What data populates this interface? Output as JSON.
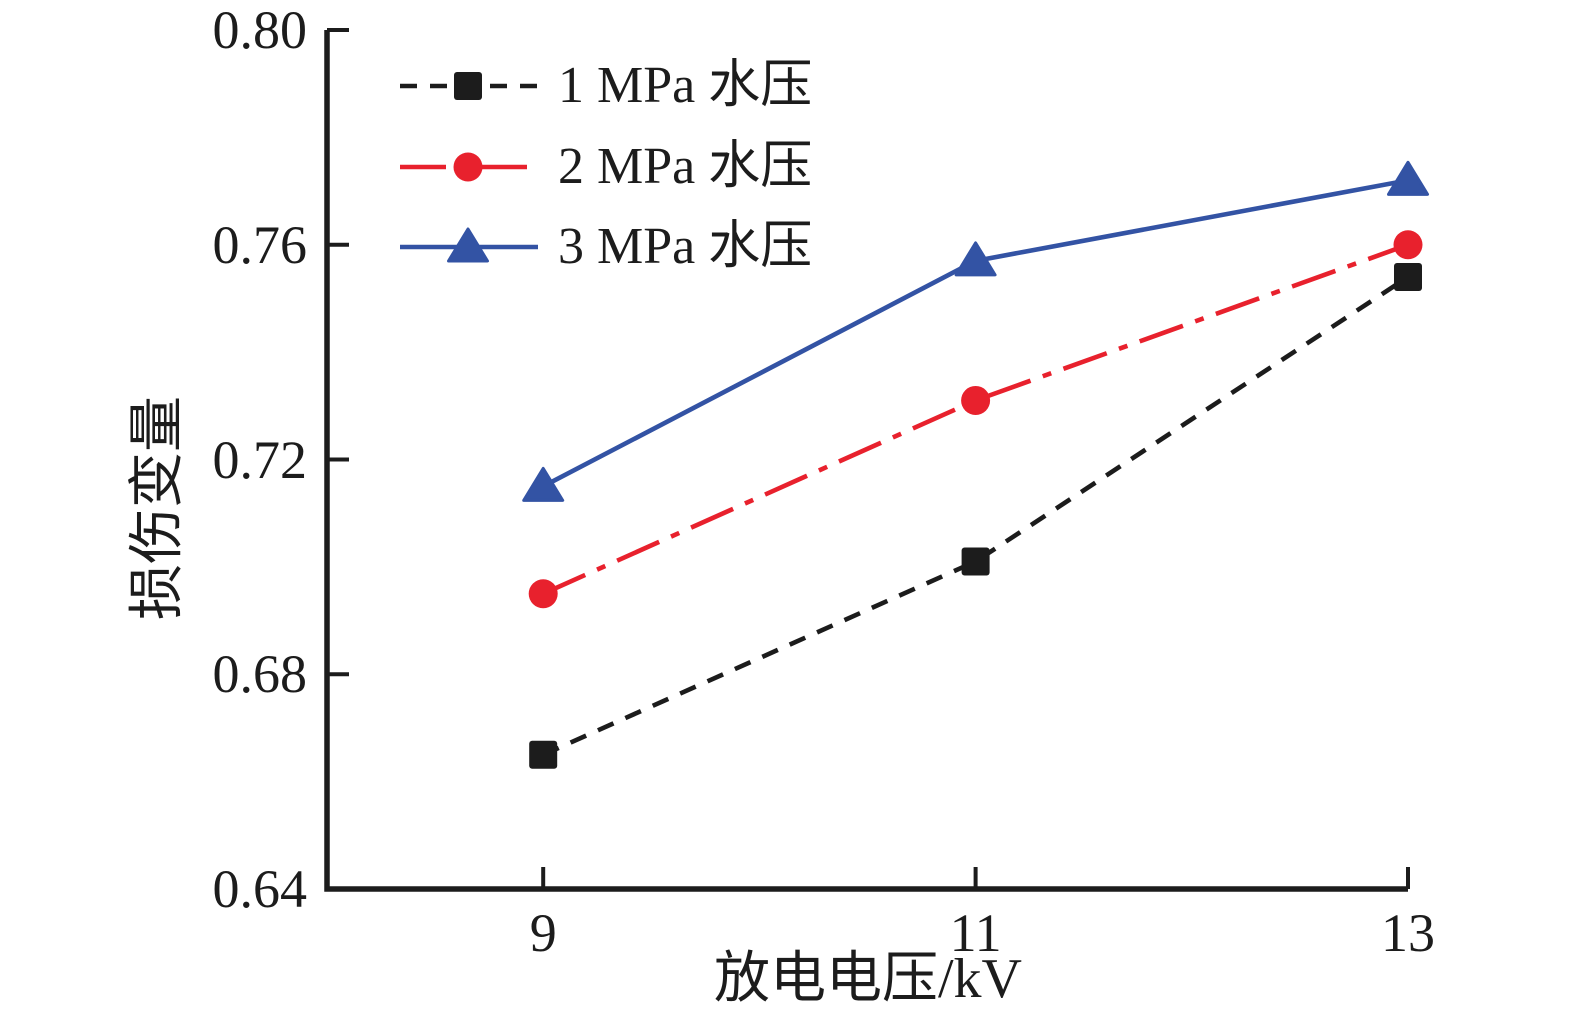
{
  "chart_data": {
    "type": "line",
    "x": [
      9,
      11,
      13
    ],
    "xtick_labels": [
      "9",
      "11",
      "13"
    ],
    "ytick_labels": [
      "0.64",
      "0.68",
      "0.72",
      "0.76",
      "0.80"
    ],
    "xlabel": "放电电压/kV",
    "ylabel": "损伤变量",
    "xlim": [
      8,
      13
    ],
    "ylim": [
      0.64,
      0.8
    ],
    "grid": false,
    "legend_position": "top-left-inside",
    "axis_color": "#1c1c1c",
    "series": [
      {
        "name": "1 MPa 水压",
        "color": "#1c1c1c",
        "marker": "square",
        "line_style": "dashed",
        "values": [
          0.665,
          0.701,
          0.754
        ]
      },
      {
        "name": "2 MPa 水压",
        "color": "#e8212d",
        "marker": "circle",
        "line_style": "dashdot",
        "values": [
          0.695,
          0.731,
          0.76
        ]
      },
      {
        "name": "3 MPa 水压",
        "color": "#3353a4",
        "marker": "triangle",
        "line_style": "solid",
        "values": [
          0.715,
          0.757,
          0.772
        ]
      }
    ]
  }
}
